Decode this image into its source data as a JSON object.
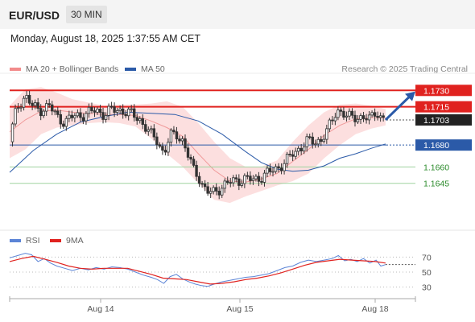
{
  "header": {
    "symbol": "EUR/USD",
    "interval": "30 MIN"
  },
  "datetime": "Monday, August 18, 2025 1:37:55 AM CET",
  "legend": {
    "ma20": {
      "label": "MA 20 + Bollinger Bands",
      "color": "#f28b8b"
    },
    "ma50": {
      "label": "MA 50",
      "color": "#2b5aa8"
    }
  },
  "credit": "Research © 2025 Trading Central",
  "rsi_legend": {
    "rsi": {
      "label": "RSI",
      "color": "#5b84d6"
    },
    "ma9": {
      "label": "9MA",
      "color": "#e0221f"
    }
  },
  "chart_data": [
    {
      "type": "candlestick",
      "ylim": [
        1.1605,
        1.1742
      ],
      "x_ticks": [
        "Aug 14",
        "Aug 15",
        "Aug 18"
      ],
      "levels": [
        {
          "value": 1.173,
          "label": "1.1730",
          "kind": "resistance",
          "color": "#e0221f"
        },
        {
          "value": 1.1715,
          "label": "1.1715",
          "kind": "resistance",
          "color": "#e0221f"
        },
        {
          "value": 1.1703,
          "label": "1.1703",
          "kind": "last-price",
          "color": "#222222"
        },
        {
          "value": 1.168,
          "label": "1.1680",
          "kind": "pivot",
          "color": "#2b5aa8"
        },
        {
          "value": 1.166,
          "label": "1.1660",
          "kind": "support",
          "color": "#2a8a2a"
        },
        {
          "value": 1.1645,
          "label": "1.1645",
          "kind": "support",
          "color": "#2a8a2a"
        }
      ],
      "price_path": [
        [
          0,
          1.1683
        ],
        [
          6,
          1.1706
        ],
        [
          12,
          1.1718
        ],
        [
          20,
          1.1725
        ],
        [
          28,
          1.1716
        ],
        [
          38,
          1.1712
        ],
        [
          50,
          1.1716
        ],
        [
          60,
          1.1706
        ],
        [
          70,
          1.1701
        ],
        [
          80,
          1.1706
        ],
        [
          95,
          1.1708
        ],
        [
          110,
          1.1712
        ],
        [
          120,
          1.1708
        ],
        [
          130,
          1.1712
        ],
        [
          142,
          1.1712
        ],
        [
          155,
          1.1708
        ],
        [
          165,
          1.1704
        ],
        [
          172,
          1.1697
        ],
        [
          180,
          1.1689
        ],
        [
          188,
          1.1684
        ],
        [
          196,
          1.1672
        ],
        [
          204,
          1.1688
        ],
        [
          212,
          1.169
        ],
        [
          220,
          1.1684
        ],
        [
          228,
          1.1668
        ],
        [
          234,
          1.1657
        ],
        [
          240,
          1.1652
        ],
        [
          246,
          1.1642
        ],
        [
          252,
          1.1637
        ],
        [
          258,
          1.1636
        ],
        [
          266,
          1.164
        ],
        [
          276,
          1.1645
        ],
        [
          290,
          1.1648
        ],
        [
          300,
          1.1649
        ],
        [
          310,
          1.1648
        ],
        [
          320,
          1.1651
        ],
        [
          330,
          1.1655
        ],
        [
          340,
          1.1659
        ],
        [
          350,
          1.1664
        ],
        [
          360,
          1.1672
        ],
        [
          370,
          1.1678
        ],
        [
          378,
          1.1683
        ],
        [
          388,
          1.1683
        ],
        [
          396,
          1.1685
        ],
        [
          404,
          1.1693
        ],
        [
          410,
          1.1702
        ],
        [
          416,
          1.1713
        ],
        [
          422,
          1.171
        ],
        [
          430,
          1.1705
        ],
        [
          440,
          1.1706
        ],
        [
          450,
          1.1705
        ],
        [
          458,
          1.1703
        ],
        [
          466,
          1.1712
        ],
        [
          472,
          1.1705
        ],
        [
          478,
          1.1703
        ]
      ],
      "ma50_path": [
        [
          0,
          1.1655
        ],
        [
          30,
          1.1675
        ],
        [
          60,
          1.169
        ],
        [
          90,
          1.1701
        ],
        [
          120,
          1.1706
        ],
        [
          150,
          1.171
        ],
        [
          180,
          1.1709
        ],
        [
          210,
          1.1708
        ],
        [
          240,
          1.1702
        ],
        [
          270,
          1.169
        ],
        [
          300,
          1.1674
        ],
        [
          320,
          1.1664
        ],
        [
          340,
          1.1658
        ],
        [
          360,
          1.1656
        ],
        [
          380,
          1.1657
        ],
        [
          400,
          1.1661
        ],
        [
          420,
          1.1668
        ],
        [
          440,
          1.1672
        ],
        [
          460,
          1.1677
        ],
        [
          478,
          1.1681
        ]
      ],
      "bollinger_upper": [
        [
          0,
          1.1716
        ],
        [
          20,
          1.1731
        ],
        [
          40,
          1.1733
        ],
        [
          60,
          1.1728
        ],
        [
          80,
          1.1722
        ],
        [
          100,
          1.1719
        ],
        [
          120,
          1.1716
        ],
        [
          140,
          1.1717
        ],
        [
          160,
          1.1717
        ],
        [
          180,
          1.1718
        ],
        [
          200,
          1.172
        ],
        [
          220,
          1.1715
        ],
        [
          240,
          1.17
        ],
        [
          260,
          1.1683
        ],
        [
          280,
          1.1668
        ],
        [
          300,
          1.166
        ],
        [
          320,
          1.166
        ],
        [
          340,
          1.1666
        ],
        [
          360,
          1.1683
        ],
        [
          380,
          1.1698
        ],
        [
          400,
          1.171
        ],
        [
          420,
          1.1717
        ],
        [
          440,
          1.1718
        ],
        [
          460,
          1.1716
        ],
        [
          478,
          1.1713
        ]
      ],
      "bollinger_lower": [
        [
          0,
          1.1668
        ],
        [
          20,
          1.1676
        ],
        [
          40,
          1.169
        ],
        [
          60,
          1.1696
        ],
        [
          80,
          1.1698
        ],
        [
          100,
          1.17
        ],
        [
          120,
          1.1701
        ],
        [
          140,
          1.17
        ],
        [
          160,
          1.1697
        ],
        [
          180,
          1.1686
        ],
        [
          200,
          1.1672
        ],
        [
          220,
          1.166
        ],
        [
          240,
          1.1645
        ],
        [
          260,
          1.163
        ],
        [
          280,
          1.1627
        ],
        [
          300,
          1.1633
        ],
        [
          320,
          1.1638
        ],
        [
          340,
          1.1643
        ],
        [
          360,
          1.1647
        ],
        [
          380,
          1.1654
        ],
        [
          400,
          1.1668
        ],
        [
          420,
          1.168
        ],
        [
          440,
          1.169
        ],
        [
          460,
          1.1695
        ],
        [
          478,
          1.1698
        ]
      ],
      "bollinger_mid": [
        [
          0,
          1.1692
        ],
        [
          20,
          1.1703
        ],
        [
          40,
          1.1711
        ],
        [
          60,
          1.1712
        ],
        [
          80,
          1.171
        ],
        [
          100,
          1.1709
        ],
        [
          120,
          1.1708
        ],
        [
          140,
          1.1708
        ],
        [
          160,
          1.1707
        ],
        [
          180,
          1.1702
        ],
        [
          200,
          1.1696
        ],
        [
          220,
          1.1688
        ],
        [
          240,
          1.1672
        ],
        [
          260,
          1.1657
        ],
        [
          280,
          1.1647
        ],
        [
          300,
          1.1646
        ],
        [
          320,
          1.1649
        ],
        [
          340,
          1.1654
        ],
        [
          360,
          1.1665
        ],
        [
          380,
          1.1676
        ],
        [
          400,
          1.1689
        ],
        [
          420,
          1.1698
        ],
        [
          440,
          1.1704
        ],
        [
          460,
          1.1705
        ],
        [
          478,
          1.1705
        ]
      ],
      "forecast_arrow": {
        "from": [
          478,
          1.1703
        ],
        "to": [
          516,
          1.1729
        ]
      }
    },
    {
      "type": "line",
      "name": "rsi-panel",
      "ylim": [
        20,
        80
      ],
      "y_ticks": [
        70,
        50,
        30
      ],
      "rsi_path": [
        [
          0,
          69
        ],
        [
          10,
          72
        ],
        [
          20,
          75
        ],
        [
          28,
          73
        ],
        [
          36,
          64
        ],
        [
          44,
          68
        ],
        [
          52,
          62
        ],
        [
          60,
          58
        ],
        [
          70,
          55
        ],
        [
          80,
          52
        ],
        [
          90,
          55
        ],
        [
          100,
          53
        ],
        [
          110,
          56
        ],
        [
          120,
          54
        ],
        [
          130,
          57
        ],
        [
          140,
          56
        ],
        [
          150,
          54
        ],
        [
          160,
          50
        ],
        [
          170,
          46
        ],
        [
          180,
          43
        ],
        [
          188,
          40
        ],
        [
          196,
          35
        ],
        [
          204,
          44
        ],
        [
          212,
          47
        ],
        [
          220,
          41
        ],
        [
          228,
          37
        ],
        [
          236,
          34
        ],
        [
          244,
          32
        ],
        [
          252,
          31
        ],
        [
          260,
          34
        ],
        [
          270,
          37
        ],
        [
          280,
          39
        ],
        [
          290,
          41
        ],
        [
          300,
          43
        ],
        [
          310,
          44
        ],
        [
          320,
          46
        ],
        [
          330,
          48
        ],
        [
          340,
          52
        ],
        [
          350,
          56
        ],
        [
          360,
          58
        ],
        [
          370,
          63
        ],
        [
          380,
          66
        ],
        [
          390,
          64
        ],
        [
          400,
          66
        ],
        [
          410,
          68
        ],
        [
          418,
          72
        ],
        [
          426,
          65
        ],
        [
          434,
          67
        ],
        [
          442,
          64
        ],
        [
          450,
          68
        ],
        [
          458,
          62
        ],
        [
          466,
          66
        ],
        [
          472,
          58
        ],
        [
          478,
          60
        ]
      ],
      "ma9_path": [
        [
          0,
          64
        ],
        [
          15,
          68
        ],
        [
          30,
          71
        ],
        [
          45,
          67
        ],
        [
          60,
          63
        ],
        [
          75,
          58
        ],
        [
          90,
          55
        ],
        [
          105,
          54
        ],
        [
          120,
          55
        ],
        [
          135,
          55
        ],
        [
          150,
          55
        ],
        [
          165,
          51
        ],
        [
          180,
          47
        ],
        [
          195,
          42
        ],
        [
          210,
          41
        ],
        [
          225,
          40
        ],
        [
          240,
          37
        ],
        [
          255,
          34
        ],
        [
          270,
          35
        ],
        [
          285,
          37
        ],
        [
          300,
          40
        ],
        [
          315,
          42
        ],
        [
          330,
          45
        ],
        [
          345,
          49
        ],
        [
          360,
          54
        ],
        [
          375,
          59
        ],
        [
          390,
          63
        ],
        [
          405,
          65
        ],
        [
          420,
          67
        ],
        [
          435,
          66
        ],
        [
          450,
          65
        ],
        [
          465,
          64
        ],
        [
          478,
          62
        ]
      ]
    }
  ]
}
